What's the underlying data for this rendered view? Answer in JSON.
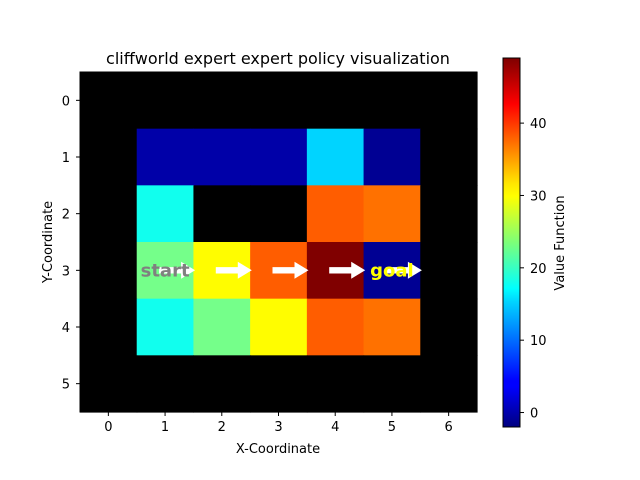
{
  "chart_data": {
    "type": "heatmap",
    "title": "cliffworld expert expert policy visualization",
    "xlabel": "X-Coordinate",
    "ylabel": "Y-Coordinate",
    "x_ticks": [
      "0",
      "1",
      "2",
      "3",
      "4",
      "5",
      "6"
    ],
    "y_ticks": [
      "0",
      "1",
      "2",
      "3",
      "4",
      "5"
    ],
    "xlim": [
      -0.5,
      6.5
    ],
    "ylim": [
      5.5,
      -0.5
    ],
    "grid": false,
    "colormap": "jet",
    "colorbar": {
      "label": "Value Function",
      "min": -2,
      "max": 49,
      "ticks": [
        "0",
        "10",
        "20",
        "30",
        "40"
      ],
      "tick_values": [
        0,
        10,
        20,
        30,
        40
      ]
    },
    "masked_color": "#000000",
    "values": [
      [
        null,
        null,
        null,
        null,
        null,
        null,
        null
      ],
      [
        null,
        0,
        0,
        0,
        15,
        -1,
        null
      ],
      [
        null,
        18,
        null,
        null,
        38,
        37,
        null
      ],
      [
        null,
        23,
        30,
        38,
        49,
        -1,
        null
      ],
      [
        null,
        18,
        23,
        30,
        38,
        37,
        null
      ],
      [
        null,
        null,
        null,
        null,
        null,
        null,
        null
      ]
    ],
    "arrows": [
      {
        "x": 1,
        "y": 3,
        "direction": "right"
      },
      {
        "x": 2,
        "y": 3,
        "direction": "right"
      },
      {
        "x": 3,
        "y": 3,
        "direction": "right"
      },
      {
        "x": 4,
        "y": 3,
        "direction": "right"
      },
      {
        "x": 5,
        "y": 3,
        "direction": "right"
      }
    ],
    "annotations": [
      {
        "text": "start",
        "x": 1,
        "y": 3,
        "color": "#808080"
      },
      {
        "text": "goal",
        "x": 5,
        "y": 3,
        "color": "#ffff00"
      }
    ]
  }
}
